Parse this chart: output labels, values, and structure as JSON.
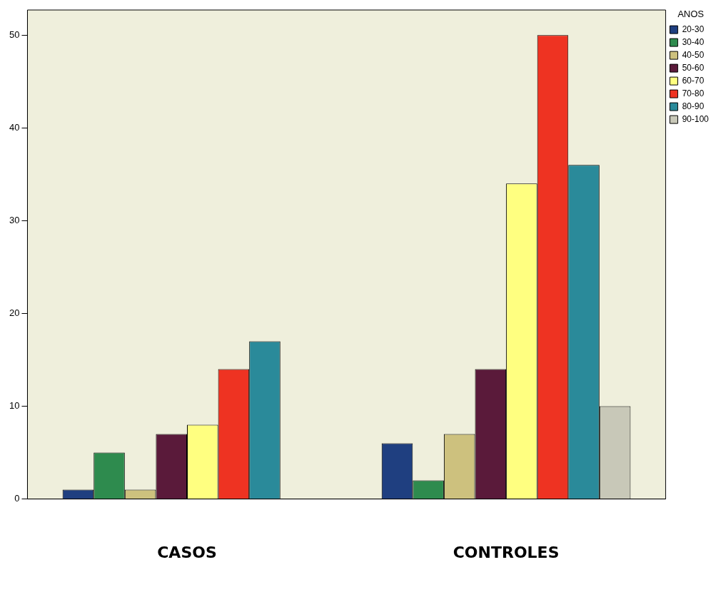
{
  "chart_data": {
    "type": "bar",
    "categories": [
      "CASOS",
      "CONTROLES"
    ],
    "legend_title": "AÑOS",
    "series": [
      {
        "name": "20-30",
        "color": "#1f3f80",
        "values": [
          1,
          6
        ]
      },
      {
        "name": "30-40",
        "color": "#2e8b4e",
        "values": [
          5,
          2
        ]
      },
      {
        "name": "40-50",
        "color": "#cdc17e",
        "values": [
          1,
          7
        ]
      },
      {
        "name": "50-60",
        "color": "#5a1a3a",
        "values": [
          7,
          14
        ]
      },
      {
        "name": "60-70",
        "color": "#ffff80",
        "values": [
          8,
          34
        ]
      },
      {
        "name": "70-80",
        "color": "#ee3322",
        "values": [
          14,
          50
        ]
      },
      {
        "name": "80-90",
        "color": "#2a8a9a",
        "values": [
          17,
          36
        ]
      },
      {
        "name": "90-100",
        "color": "#c8c8b8",
        "values": [
          null,
          10
        ]
      }
    ],
    "ylim": [
      0,
      52.7
    ],
    "yticks": [
      0,
      10,
      20,
      30,
      40,
      50
    ],
    "grid": false,
    "legend": "right"
  }
}
